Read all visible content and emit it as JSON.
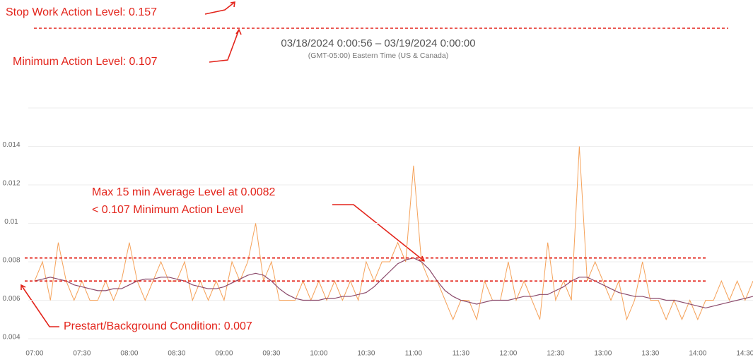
{
  "chart_data": {
    "type": "line",
    "subtitle": "03/18/2024 0:00:56 – 03/19/2024 0:00:00",
    "timezone": "(GMT-05:00) Eastern Time (US & Canada)",
    "annotations": [
      {
        "text": "Stop Work Action Level: 0.157"
      },
      {
        "text": "Minimum Action Level: 0.107"
      },
      {
        "text": "Max 15 min Average Level at 0.0082"
      },
      {
        "text": "< 0.107 Minimum Action Level"
      },
      {
        "text": "Prestart/Background Condition: 0.007"
      }
    ],
    "reference_lines": [
      {
        "value": 0.0082,
        "color": "#e3241b"
      },
      {
        "value": 0.007,
        "color": "#e3241b"
      }
    ],
    "x": [
      "07:00",
      "07:05",
      "07:10",
      "07:15",
      "07:20",
      "07:25",
      "07:30",
      "07:35",
      "07:40",
      "07:45",
      "07:50",
      "07:55",
      "08:00",
      "08:05",
      "08:10",
      "08:15",
      "08:20",
      "08:25",
      "08:30",
      "08:35",
      "08:40",
      "08:45",
      "08:50",
      "08:55",
      "09:00",
      "09:05",
      "09:10",
      "09:15",
      "09:20",
      "09:25",
      "09:30",
      "09:35",
      "09:40",
      "09:45",
      "09:50",
      "09:55",
      "10:00",
      "10:05",
      "10:10",
      "10:15",
      "10:20",
      "10:25",
      "10:30",
      "10:35",
      "10:40",
      "10:45",
      "10:50",
      "10:55",
      "11:00",
      "11:05",
      "11:10",
      "11:15",
      "11:20",
      "11:25",
      "11:30",
      "11:35",
      "11:40",
      "11:45",
      "11:50",
      "11:55",
      "12:00",
      "12:05",
      "12:10",
      "12:15",
      "12:20",
      "12:25",
      "12:30",
      "12:35",
      "12:40",
      "12:45",
      "12:50",
      "12:55",
      "13:00",
      "13:05",
      "13:10",
      "13:15",
      "13:20",
      "13:25",
      "13:30",
      "13:35",
      "13:40",
      "13:45",
      "13:50",
      "13:55",
      "14:00",
      "14:05",
      "14:10",
      "14:15",
      "14:20",
      "14:25",
      "14:30",
      "14:35"
    ],
    "series": [
      {
        "color": "#f5a25a",
        "values": [
          0.007,
          0.008,
          0.006,
          0.009,
          0.007,
          0.006,
          0.007,
          0.006,
          0.006,
          0.007,
          0.006,
          0.007,
          0.009,
          0.007,
          0.006,
          0.007,
          0.008,
          0.007,
          0.007,
          0.008,
          0.006,
          0.007,
          0.006,
          0.007,
          0.006,
          0.008,
          0.007,
          0.008,
          0.01,
          0.007,
          0.008,
          0.006,
          0.006,
          0.006,
          0.007,
          0.006,
          0.007,
          0.006,
          0.007,
          0.006,
          0.007,
          0.006,
          0.008,
          0.007,
          0.008,
          0.008,
          0.009,
          0.008,
          0.013,
          0.008,
          0.007,
          0.007,
          0.006,
          0.005,
          0.006,
          0.006,
          0.005,
          0.007,
          0.006,
          0.006,
          0.008,
          0.006,
          0.007,
          0.006,
          0.005,
          0.009,
          0.006,
          0.007,
          0.006,
          0.014,
          0.007,
          0.008,
          0.007,
          0.006,
          0.007,
          0.005,
          0.006,
          0.008,
          0.006,
          0.006,
          0.005,
          0.006,
          0.005,
          0.006,
          0.005,
          0.006,
          0.006,
          0.007,
          0.006,
          0.007,
          0.006,
          0.007
        ]
      },
      {
        "color": "#8b4a6b",
        "values": [
          0.007,
          0.0071,
          0.0072,
          0.0071,
          0.007,
          0.0068,
          0.0067,
          0.0066,
          0.0065,
          0.0065,
          0.0066,
          0.0066,
          0.0068,
          0.007,
          0.0071,
          0.0071,
          0.0072,
          0.0072,
          0.0071,
          0.007,
          0.0068,
          0.0067,
          0.0066,
          0.0066,
          0.0067,
          0.0069,
          0.0071,
          0.0073,
          0.0074,
          0.0073,
          0.007,
          0.0066,
          0.0063,
          0.0061,
          0.006,
          0.006,
          0.006,
          0.0061,
          0.0061,
          0.0062,
          0.0062,
          0.0063,
          0.0064,
          0.0067,
          0.0071,
          0.0075,
          0.0079,
          0.0081,
          0.0082,
          0.008,
          0.0076,
          0.007,
          0.0065,
          0.0062,
          0.006,
          0.0059,
          0.0058,
          0.0059,
          0.006,
          0.006,
          0.006,
          0.0061,
          0.0062,
          0.0062,
          0.0063,
          0.0063,
          0.0065,
          0.0067,
          0.007,
          0.0072,
          0.0072,
          0.007,
          0.0068,
          0.0066,
          0.0064,
          0.0063,
          0.0062,
          0.0062,
          0.0061,
          0.0061,
          0.006,
          0.006,
          0.0059,
          0.0058,
          0.0057,
          0.0056,
          0.0057,
          0.0058,
          0.0059,
          0.006,
          0.0061,
          0.0062
        ]
      }
    ],
    "xlim": [
      "06:56",
      "14:35"
    ],
    "xticks": [
      "07:00",
      "07:30",
      "08:00",
      "08:30",
      "09:00",
      "09:30",
      "10:00",
      "10:30",
      "11:00",
      "11:30",
      "12:00",
      "12:30",
      "13:00",
      "13:30",
      "14:00",
      "14:30"
    ],
    "ylim": [
      0.004,
      0.016
    ],
    "yticks": [
      0.004,
      0.006,
      0.008,
      0.01,
      0.012,
      0.014
    ],
    "grid": true
  }
}
